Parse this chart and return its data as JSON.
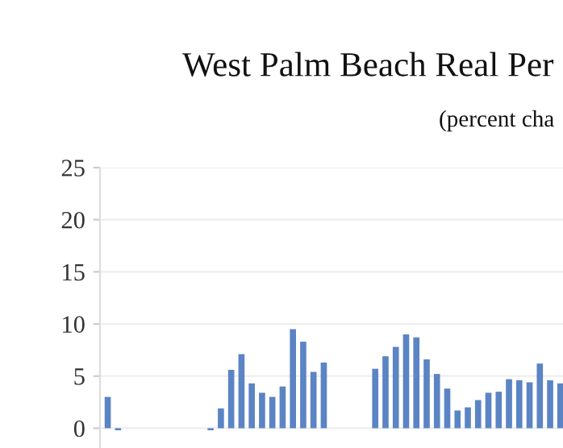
{
  "chart_data": {
    "type": "bar",
    "title": "West Palm Beach Real Per",
    "subtitle": "(percent cha",
    "categories": [
      null,
      null,
      null,
      null,
      null,
      null,
      null,
      null,
      null,
      null,
      null,
      null,
      null,
      null,
      null,
      null,
      null,
      null,
      null,
      null,
      null,
      null,
      null,
      null,
      null,
      null,
      null,
      null,
      null,
      null,
      null,
      null,
      null,
      null,
      null,
      null,
      null,
      null,
      null,
      null,
      null,
      null,
      null,
      null,
      null
    ],
    "values": [
      3.0,
      -0.2,
      null,
      null,
      null,
      null,
      null,
      null,
      null,
      null,
      -0.2,
      1.9,
      5.6,
      7.1,
      4.3,
      3.4,
      3.0,
      4.0,
      9.5,
      8.3,
      5.4,
      6.3,
      null,
      null,
      null,
      null,
      5.7,
      6.9,
      7.8,
      9.0,
      8.7,
      6.6,
      5.2,
      3.8,
      1.7,
      2.0,
      2.7,
      3.4,
      3.5,
      4.7,
      4.6,
      4.4,
      6.2,
      4.6,
      4.3
    ],
    "color": "#5b84c4",
    "ylim": [
      -1.9,
      25
    ],
    "yticks": [
      0,
      5,
      10,
      15,
      20,
      25
    ],
    "grid": "y",
    "tick_labels": "y",
    "legend": false
  }
}
